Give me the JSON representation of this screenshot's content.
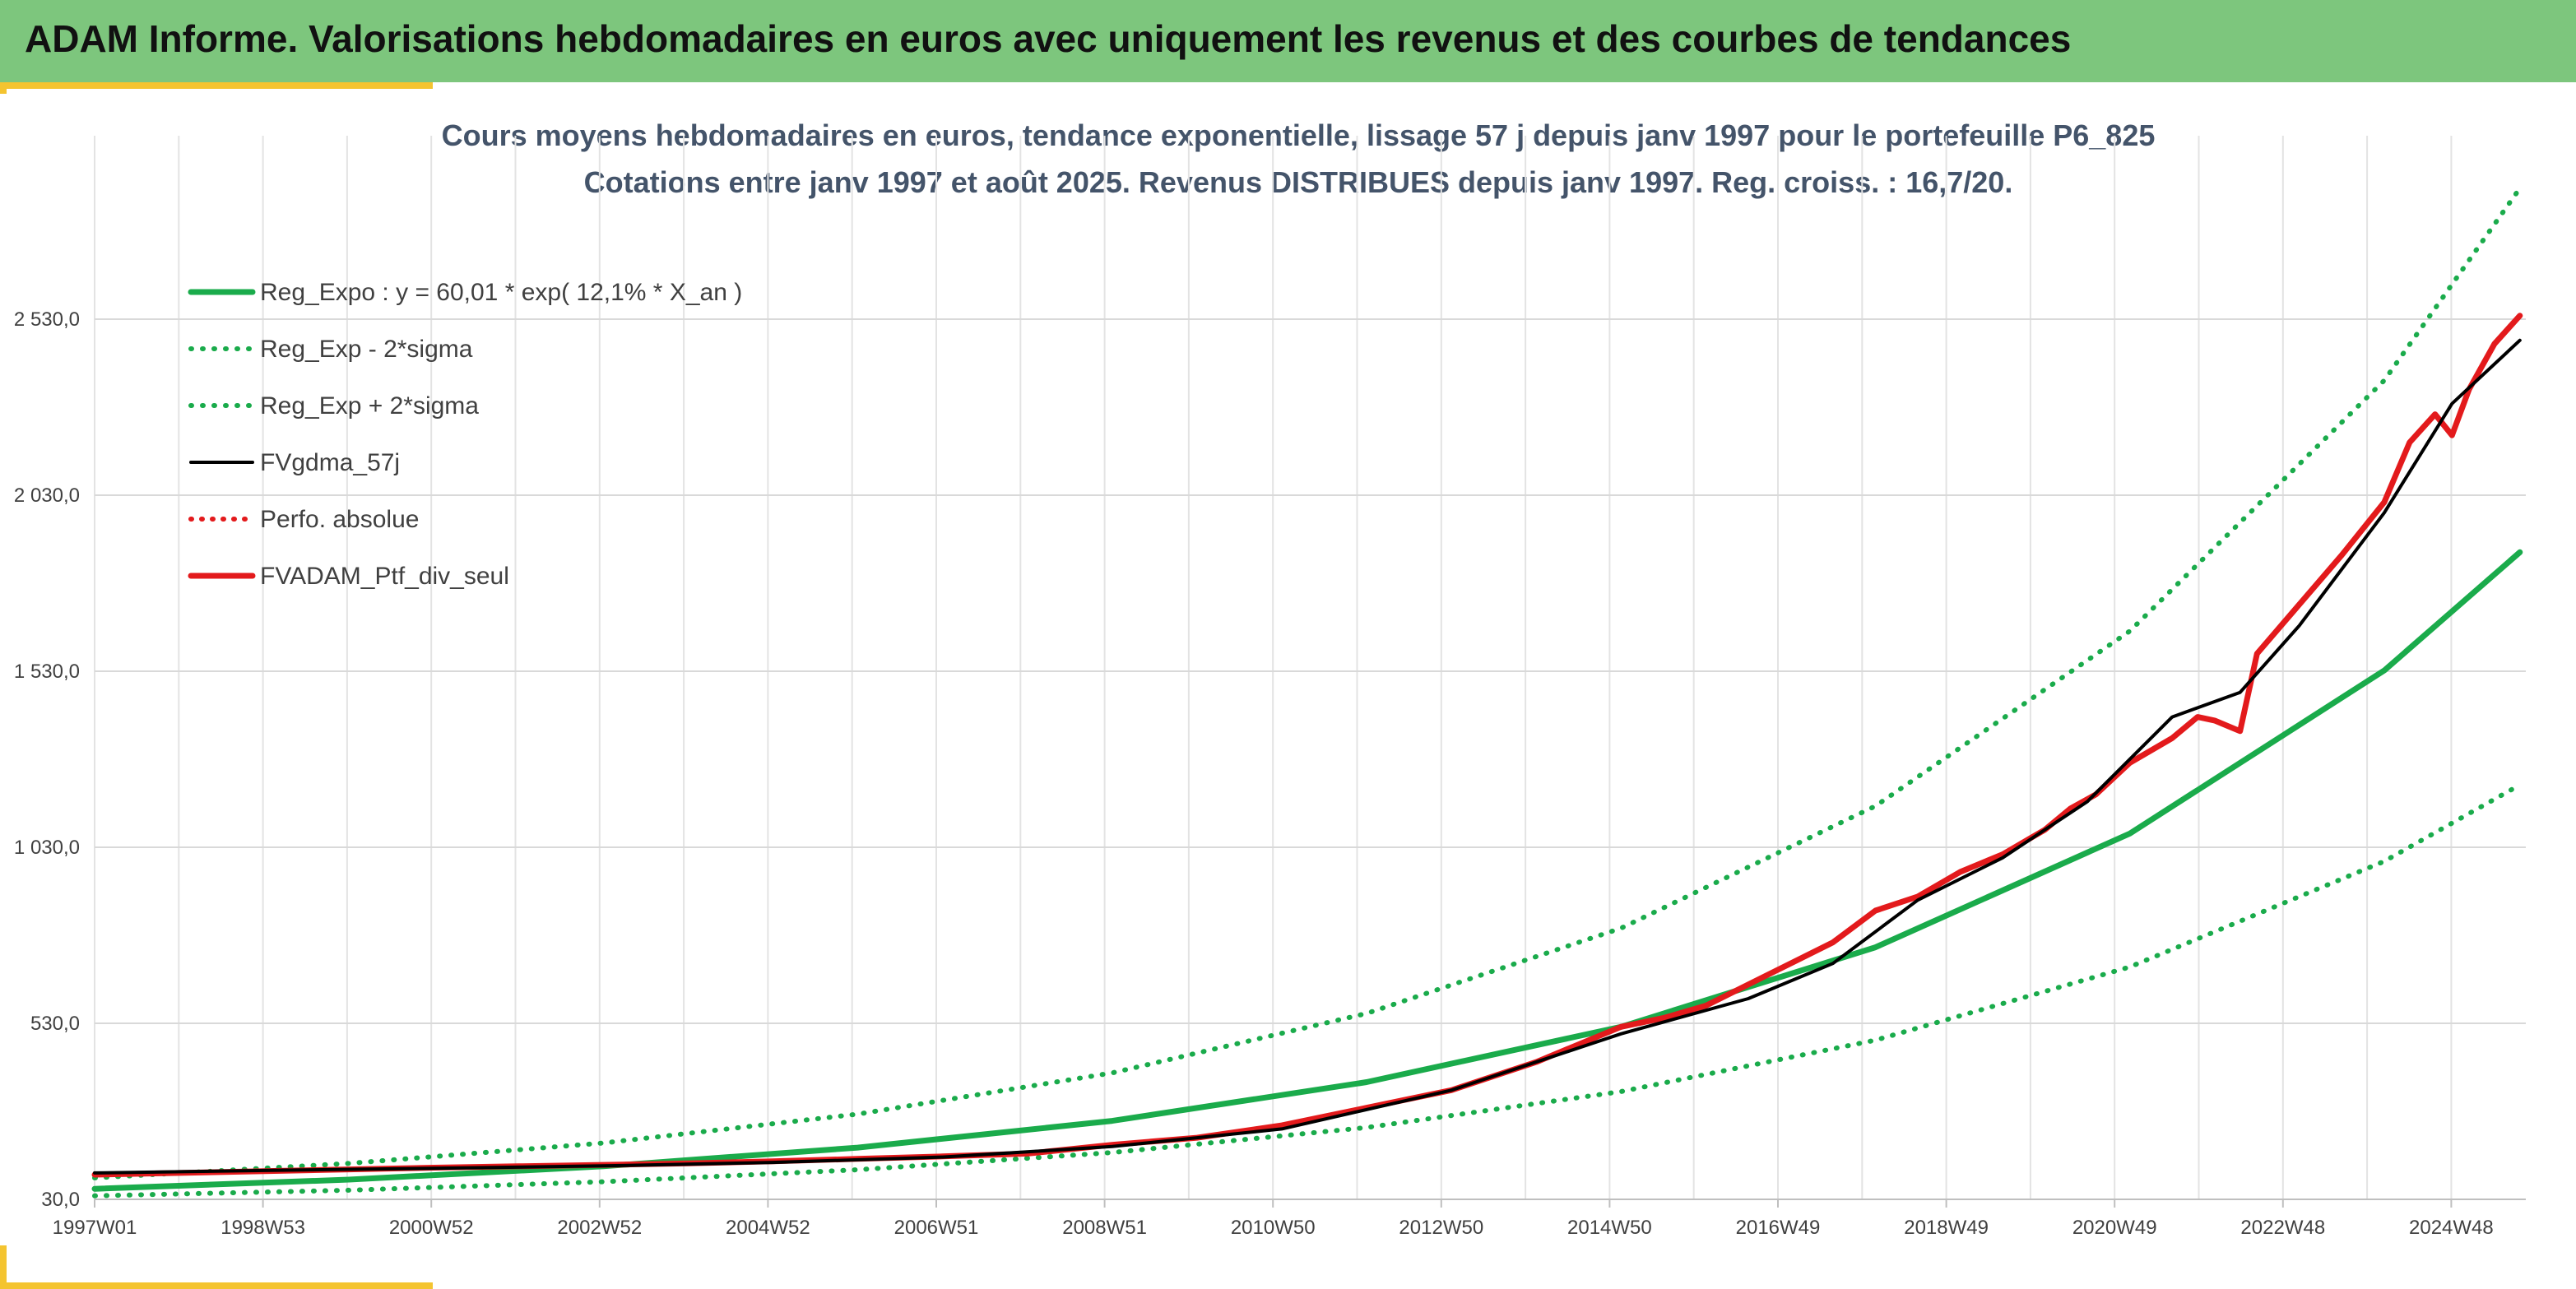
{
  "header": {
    "title": "ADAM Informe. Valorisations hebdomadaires en euros avec uniquement les revenus et des courbes de tendances"
  },
  "colors": {
    "banner": "#7dc67d",
    "accent": "#f4c430",
    "trend": "#1aab4b",
    "smooth": "#000000",
    "perf": "#e31a1c",
    "portfolio": "#e31a1c"
  },
  "chart_data": {
    "type": "line",
    "title_line1": "Cours moyens hebdomadaires en euros, tendance exponentielle, lissage 57 j depuis janv 1997 pour le portefeuille P6_825",
    "title_line2": "Cotations entre janv 1997 et août 2025. Revenus DISTRIBUES depuis janv 1997. Reg. croiss. : 16,7/20.",
    "x_tick_labels": [
      "1997W01",
      "1998W53",
      "2000W52",
      "2002W52",
      "2004W52",
      "2006W51",
      "2008W51",
      "2010W50",
      "2012W50",
      "2014W50",
      "2016W49",
      "2018W49",
      "2020W49",
      "2022W48",
      "2024W48"
    ],
    "y_tick_labels": [
      "30,0",
      "530,0",
      "1 030,0",
      "1 530,0",
      "2 030,0",
      "2 530,0"
    ],
    "ylim": [
      30,
      3000
    ],
    "grid": true,
    "legend_position": "top-left",
    "series": [
      {
        "name": "Reg_Expo : y = 60,01 * exp( 12,1% *  X_an )",
        "style": "solid-green",
        "x": [
          1997,
          2000,
          2003,
          2006,
          2009,
          2012,
          2015,
          2018,
          2021,
          2024,
          2025.6
        ],
        "values": [
          60,
          86,
          124,
          177,
          253,
          363,
          520,
          746,
          1069,
          1532,
          1868
        ]
      },
      {
        "name": "Reg_Exp - 2*sigma",
        "style": "dotted-green",
        "x": [
          1997,
          2000,
          2003,
          2006,
          2009,
          2012,
          2015,
          2018,
          2021,
          2024,
          2025.6
        ],
        "values": [
          40,
          56,
          80,
          114,
          163,
          234,
          336,
          482,
          690,
          990,
          1207
        ]
      },
      {
        "name": "Reg_Exp + 2*sigma",
        "style": "dotted-green",
        "x": [
          1997,
          2000,
          2003,
          2006,
          2009,
          2012,
          2015,
          2018,
          2021,
          2024,
          2025.6
        ],
        "values": [
          91,
          132,
          190,
          272,
          389,
          558,
          800,
          1147,
          1644,
          2356,
          2902
        ]
      },
      {
        "name": "FVgdma_57j",
        "style": "solid-black",
        "x": [
          1997,
          1999,
          2001,
          2003,
          2005,
          2007,
          2009,
          2011,
          2013,
          2015,
          2016.5,
          2017.5,
          2018.5,
          2019.5,
          2020.5,
          2021.5,
          2022.3,
          2023,
          2024,
          2024.8,
          2025.6
        ],
        "values": [
          105,
          112,
          118,
          125,
          135,
          150,
          180,
          230,
          340,
          500,
          600,
          700,
          880,
          1000,
          1160,
          1400,
          1470,
          1660,
          1980,
          2290,
          2470
        ]
      },
      {
        "name": "Perfo. absolue",
        "style": "dotted-red",
        "x": [
          1997,
          1999,
          2001,
          2003,
          2005,
          2007,
          2009,
          2011,
          2013,
          2015,
          2016.5,
          2017.5,
          2018.5,
          2019.5,
          2020.5,
          2021.5,
          2022.3,
          2023,
          2024,
          2024.8,
          2025.6
        ],
        "values": [
          105,
          112,
          118,
          125,
          135,
          150,
          180,
          230,
          340,
          500,
          600,
          700,
          880,
          1000,
          1160,
          1400,
          1470,
          1660,
          1980,
          2290,
          2470
        ]
      },
      {
        "name": "FVADAM_Ptf_div_seul",
        "style": "solid-red",
        "x": [
          1997,
          1998,
          1999,
          2000,
          2001,
          2002,
          2003,
          2004,
          2005,
          2006,
          2007,
          2008,
          2009,
          2010,
          2011,
          2012,
          2013,
          2013.5,
          2014,
          2014.5,
          2015,
          2015.5,
          2016,
          2016.5,
          2017,
          2017.5,
          2018,
          2018.5,
          2019,
          2019.5,
          2020,
          2020.3,
          2020.6,
          2021,
          2021.5,
          2021.8,
          2022,
          2022.3,
          2022.5,
          2023,
          2023.5,
          2024,
          2024.3,
          2024.6,
          2024.8,
          2025,
          2025.3,
          2025.6
        ],
        "values": [
          100,
          105,
          110,
          115,
          120,
          124,
          128,
          132,
          138,
          145,
          152,
          160,
          185,
          205,
          240,
          290,
          340,
          380,
          420,
          470,
          520,
          545,
          580,
          640,
          700,
          760,
          850,
          890,
          960,
          1010,
          1080,
          1140,
          1180,
          1270,
          1340,
          1400,
          1390,
          1360,
          1580,
          1720,
          1860,
          2010,
          2180,
          2260,
          2200,
          2330,
          2460,
          2540
        ]
      }
    ]
  }
}
